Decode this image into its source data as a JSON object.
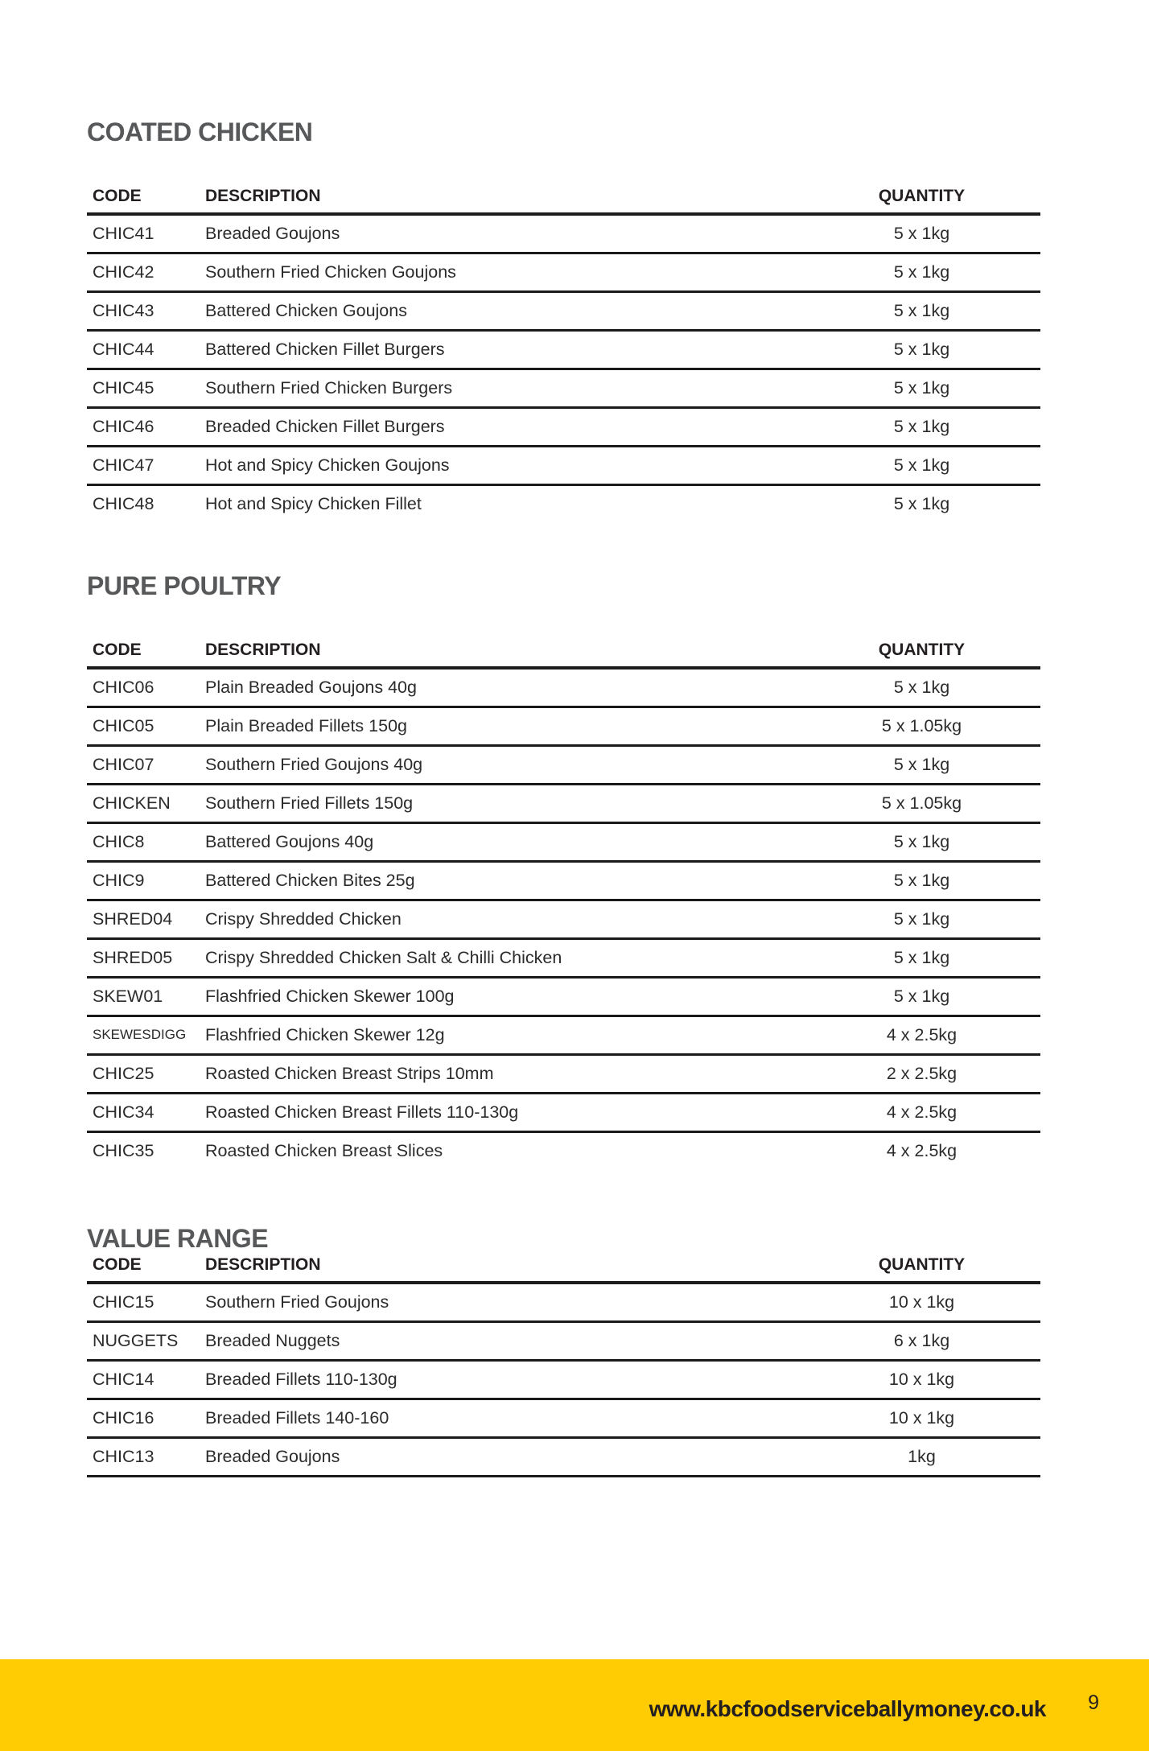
{
  "colors": {
    "accent_yellow": "#FFCC03",
    "heading_gray": "#57585A",
    "text_dark": "#231F20",
    "rule_black": "#1B1B1B"
  },
  "sections": [
    {
      "title": "COATED CHICKEN",
      "columns": [
        "CODE",
        "DESCRIPTION",
        "QUANTITY"
      ],
      "bottom_border": false,
      "rows": [
        {
          "code": "CHIC41",
          "description": "Breaded Goujons",
          "quantity": "5 x 1kg"
        },
        {
          "code": "CHIC42",
          "description": "Southern Fried Chicken Goujons",
          "quantity": "5 x 1kg"
        },
        {
          "code": "CHIC43",
          "description": "Battered Chicken Goujons",
          "quantity": "5 x 1kg"
        },
        {
          "code": "CHIC44",
          "description": "Battered Chicken Fillet Burgers",
          "quantity": "5 x 1kg"
        },
        {
          "code": "CHIC45",
          "description": "Southern Fried Chicken Burgers",
          "quantity": "5 x 1kg"
        },
        {
          "code": "CHIC46",
          "description": "Breaded Chicken Fillet Burgers",
          "quantity": "5 x 1kg"
        },
        {
          "code": "CHIC47",
          "description": "Hot and Spicy Chicken Goujons",
          "quantity": "5 x 1kg"
        },
        {
          "code": "CHIC48",
          "description": "Hot and Spicy Chicken Fillet",
          "quantity": "5 x 1kg"
        }
      ]
    },
    {
      "title": "PURE POULTRY",
      "columns": [
        "CODE",
        "DESCRIPTION",
        "QUANTITY"
      ],
      "bottom_border": false,
      "rows": [
        {
          "code": "CHIC06",
          "description": "Plain Breaded Goujons 40g",
          "quantity": "5 x 1kg"
        },
        {
          "code": "CHIC05",
          "description": "Plain Breaded Fillets 150g",
          "quantity": "5 x 1.05kg"
        },
        {
          "code": "CHIC07",
          "description": "Southern Fried Goujons 40g",
          "quantity": "5 x 1kg"
        },
        {
          "code": "CHICKEN",
          "description": "Southern Fried Fillets 150g",
          "quantity": "5 x 1.05kg"
        },
        {
          "code": "CHIC8",
          "description": "Battered Goujons 40g",
          "quantity": "5 x 1kg"
        },
        {
          "code": "CHIC9",
          "description": "Battered Chicken Bites 25g",
          "quantity": "5 x 1kg"
        },
        {
          "code": "SHRED04",
          "description": "Crispy Shredded Chicken",
          "quantity": "5 x 1kg"
        },
        {
          "code": "SHRED05",
          "description": "Crispy Shredded Chicken Salt & Chilli Chicken",
          "quantity": "5 x 1kg"
        },
        {
          "code": "SKEW01",
          "description": "Flashfried Chicken Skewer 100g",
          "quantity": "5 x 1kg"
        },
        {
          "code": "SKEWESDIGG",
          "description": "Flashfried Chicken Skewer 12g",
          "quantity": "4 x 2.5kg"
        },
        {
          "code": "CHIC25",
          "description": "Roasted Chicken Breast Strips 10mm",
          "quantity": "2 x 2.5kg"
        },
        {
          "code": "CHIC34",
          "description": "Roasted Chicken Breast Fillets 110-130g",
          "quantity": "4 x 2.5kg"
        },
        {
          "code": "CHIC35",
          "description": "Roasted Chicken Breast Slices",
          "quantity": "4 x 2.5kg"
        }
      ]
    },
    {
      "title": "VALUE RANGE",
      "columns": [
        "CODE",
        "DESCRIPTION",
        "QUANTITY"
      ],
      "bottom_border": true,
      "rows": [
        {
          "code": "CHIC15",
          "description": "Southern Fried Goujons",
          "quantity": "10 x 1kg"
        },
        {
          "code": "NUGGETS",
          "description": "Breaded Nuggets",
          "quantity": "6 x 1kg"
        },
        {
          "code": "CHIC14",
          "description": "Breaded Fillets 110-130g",
          "quantity": "10 x 1kg"
        },
        {
          "code": "CHIC16",
          "description": "Breaded Fillets 140-160",
          "quantity": "10 x 1kg"
        },
        {
          "code": "CHIC13",
          "description": "Breaded Goujons",
          "quantity": "1kg"
        }
      ]
    }
  ],
  "footer": {
    "website": "www.kbcfoodserviceballymoney.co.uk",
    "page_number": "9"
  }
}
